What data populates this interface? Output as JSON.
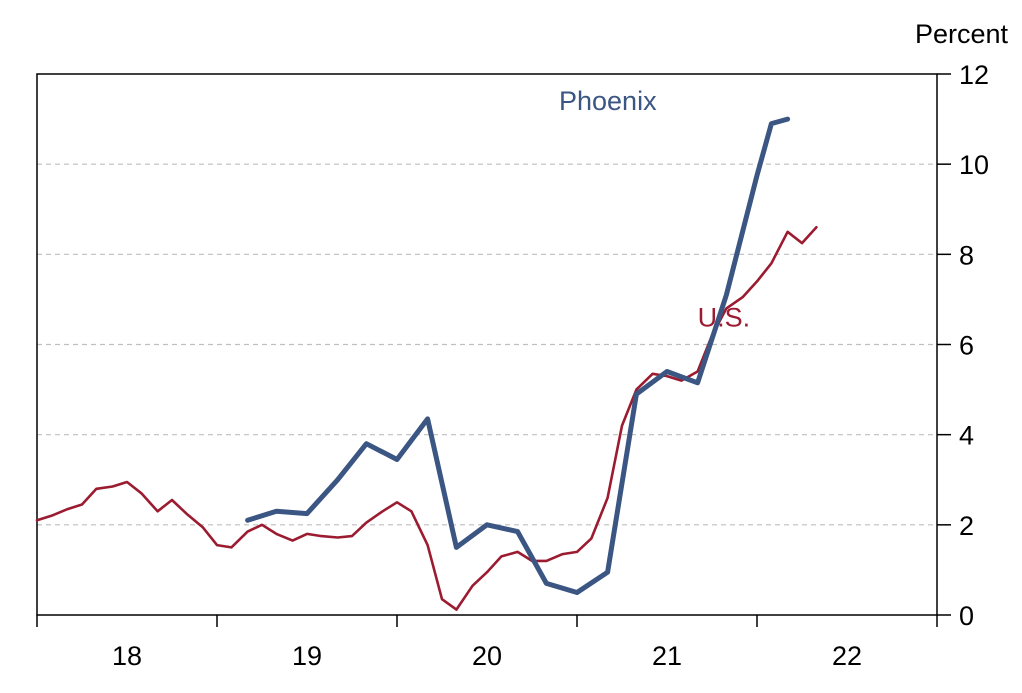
{
  "colors": {
    "phoenix": "#3b5682",
    "us": "#9b1b30",
    "grid": "#bfbfbf",
    "axis": "#000000"
  },
  "chart_data": {
    "type": "line",
    "unit_label": "Percent",
    "x_tick_labels": [
      "18",
      "19",
      "20",
      "21",
      "22"
    ],
    "x_tick_positions": [
      2018.5,
      2019.5,
      2020.5,
      2021.5,
      2022.5
    ],
    "xlim": [
      2018.0,
      2023.0
    ],
    "ylim": [
      0,
      12
    ],
    "y_ticks": [
      0,
      2,
      4,
      6,
      8,
      10,
      12
    ],
    "y_axis_side": "right",
    "grid": "horizontal dashed",
    "series": [
      {
        "name": "Phoenix",
        "color": "#3b5682",
        "x": [
          2019.17,
          2019.33,
          2019.5,
          2019.67,
          2019.83,
          2020.0,
          2020.17,
          2020.33,
          2020.5,
          2020.67,
          2020.83,
          2021.0,
          2021.17,
          2021.33,
          2021.5,
          2021.67,
          2021.83,
          2022.0,
          2022.08,
          2022.17
        ],
        "values": [
          2.1,
          2.3,
          2.25,
          3.0,
          3.8,
          3.45,
          4.35,
          1.5,
          2.0,
          1.85,
          0.7,
          0.5,
          0.95,
          4.9,
          5.4,
          5.15,
          7.1,
          9.75,
          10.9,
          11.0
        ]
      },
      {
        "name": "U.S.",
        "color": "#9b1b30",
        "x": [
          2018.0,
          2018.08,
          2018.17,
          2018.25,
          2018.33,
          2018.42,
          2018.5,
          2018.58,
          2018.67,
          2018.75,
          2018.83,
          2018.92,
          2019.0,
          2019.08,
          2019.17,
          2019.25,
          2019.33,
          2019.42,
          2019.5,
          2019.58,
          2019.67,
          2019.75,
          2019.83,
          2019.92,
          2020.0,
          2020.08,
          2020.17,
          2020.25,
          2020.33,
          2020.42,
          2020.5,
          2020.58,
          2020.67,
          2020.75,
          2020.83,
          2020.92,
          2021.0,
          2021.08,
          2021.17,
          2021.25,
          2021.33,
          2021.42,
          2021.5,
          2021.58,
          2021.67,
          2021.75,
          2021.83,
          2021.92,
          2022.0,
          2022.08,
          2022.17,
          2022.25,
          2022.33
        ],
        "values": [
          2.1,
          2.2,
          2.35,
          2.45,
          2.8,
          2.85,
          2.95,
          2.7,
          2.3,
          2.55,
          2.25,
          1.95,
          1.55,
          1.5,
          1.85,
          2.0,
          1.8,
          1.65,
          1.8,
          1.75,
          1.72,
          1.75,
          2.05,
          2.3,
          2.5,
          2.3,
          1.55,
          0.35,
          0.12,
          0.65,
          0.95,
          1.3,
          1.4,
          1.2,
          1.2,
          1.35,
          1.4,
          1.7,
          2.6,
          4.2,
          5.0,
          5.35,
          5.3,
          5.2,
          5.4,
          6.2,
          6.8,
          7.05,
          7.4,
          7.8,
          8.5,
          8.25,
          8.6
        ]
      }
    ],
    "annotations": [
      {
        "text": "Phoenix",
        "x": 2020.9,
        "y": 11.2,
        "color": "#3b5682"
      },
      {
        "text": "U.S.",
        "x": 2021.67,
        "y": 6.4,
        "color": "#9b1b30"
      }
    ]
  }
}
